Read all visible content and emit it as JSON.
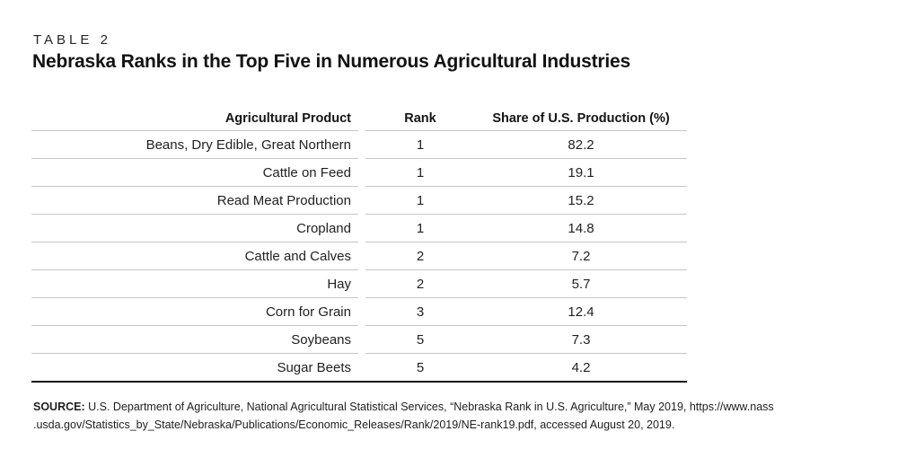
{
  "page": {
    "kicker": "TABLE 2",
    "title": "Nebraska Ranks in the Top Five in Numerous Agricultural Industries"
  },
  "table": {
    "columns": [
      "Agricultural Product",
      "Rank",
      "Share of U.S. Production (%)"
    ],
    "rows": [
      {
        "product": "Beans, Dry Edible, Great Northern",
        "rank": "1",
        "share": "82.2"
      },
      {
        "product": "Cattle on Feed",
        "rank": "1",
        "share": "19.1"
      },
      {
        "product": "Read Meat Production",
        "rank": "1",
        "share": "15.2"
      },
      {
        "product": "Cropland",
        "rank": "1",
        "share": "14.8"
      },
      {
        "product": "Cattle and Calves",
        "rank": "2",
        "share": "7.2"
      },
      {
        "product": "Hay",
        "rank": "2",
        "share": "5.7"
      },
      {
        "product": "Corn for Grain",
        "rank": "3",
        "share": "12.4"
      },
      {
        "product": "Soybeans",
        "rank": "5",
        "share": "7.3"
      },
      {
        "product": "Sugar Beets",
        "rank": "5",
        "share": "4.2"
      }
    ]
  },
  "chart_data": {
    "type": "table",
    "title": "Nebraska Ranks in the Top Five in Numerous Agricultural Industries",
    "columns": [
      "Agricultural Product",
      "Rank",
      "Share of U.S. Production (%)"
    ],
    "rows": [
      [
        "Beans, Dry Edible, Great Northern",
        1,
        82.2
      ],
      [
        "Cattle on Feed",
        1,
        19.1
      ],
      [
        "Read Meat Production",
        1,
        15.2
      ],
      [
        "Cropland",
        1,
        14.8
      ],
      [
        "Cattle and Calves",
        2,
        7.2
      ],
      [
        "Hay",
        2,
        5.7
      ],
      [
        "Corn for Grain",
        3,
        12.4
      ],
      [
        "Soybeans",
        5,
        7.3
      ],
      [
        "Sugar Beets",
        5,
        4.2
      ]
    ]
  },
  "source": {
    "label": "SOURCE:",
    "line1": " U.S. Department of Agriculture, National Agricultural Statistical Services, “Nebraska Rank in U.S. Agriculture,” May 2019, https://www.nass",
    "line2": ".usda.gov/Statistics_by_State/Nebraska/Publications/Economic_Releases/Rank/2019/NE-rank19.pdf, accessed August 20, 2019."
  },
  "colors": {
    "text": "#1e1e1e",
    "rule_light": "#c5c5c5",
    "rule_dark": "#161616",
    "background": "#ffffff"
  }
}
